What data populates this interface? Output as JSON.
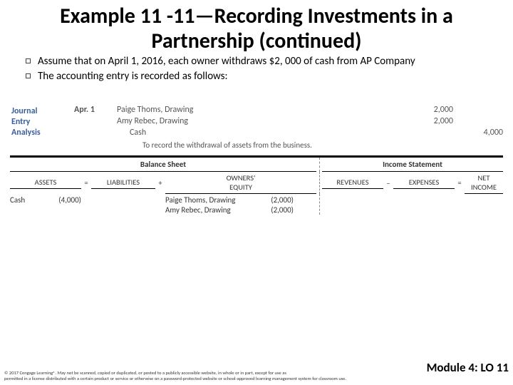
{
  "title": "Example 11 -11—Recording Investments in a Partnership (continued)",
  "bullets": [
    "Assume that on April 1, 2016, each owner withdraws $2, 000 of cash from AP Company",
    "The accounting entry is recorded as follows:"
  ],
  "journal": {
    "label_line1": "Journal",
    "label_line2": "Entry",
    "label_line3": "Analysis",
    "date": "Apr. 1",
    "lines": [
      {
        "account": "Paige Thoms, Drawing",
        "debit": "2,000",
        "credit": "",
        "indent": 0
      },
      {
        "account": "Amy Rebec, Drawing",
        "debit": "2,000",
        "credit": "",
        "indent": 0
      },
      {
        "account": "Cash",
        "debit": "",
        "credit": "4,000",
        "indent": 1
      }
    ],
    "memo": "To record the withdrawal of assets from the business."
  },
  "analysis": {
    "balance_sheet_label": "Balance Sheet",
    "income_statement_label": "Income Statement",
    "bs": {
      "assets": "ASSETS",
      "liab": "LIABILITIES",
      "equity_l1": "OWNERS'",
      "equity_l2": "EQUITY",
      "rows": [
        {
          "a_name": "Cash",
          "a_val": "(4,000)",
          "e_name": "Paige Thoms, Drawing",
          "e_val": "(2,000)"
        },
        {
          "a_name": "",
          "a_val": "",
          "e_name": "Amy Rebec, Drawing",
          "e_val": "(2,000)"
        }
      ]
    },
    "is": {
      "rev": "REVENUES",
      "exp": "EXPENSES",
      "net_l1": "NET",
      "net_l2": "INCOME"
    }
  },
  "footer": {
    "module": "Module 4: LO 11",
    "copy1": "© 2017 Cengage Learning®. May not be scanned, copied or duplicated, or posted to a publicly accessible website, in whole or in part, except for use as",
    "copy2": "permitted in a license distributed with a certain product or service or otherwise on a password-protected website or school-approved learning management system for classroom use."
  },
  "colors": {
    "accent": "#3b5ea0",
    "text": "#000000",
    "muted": "#555555"
  }
}
